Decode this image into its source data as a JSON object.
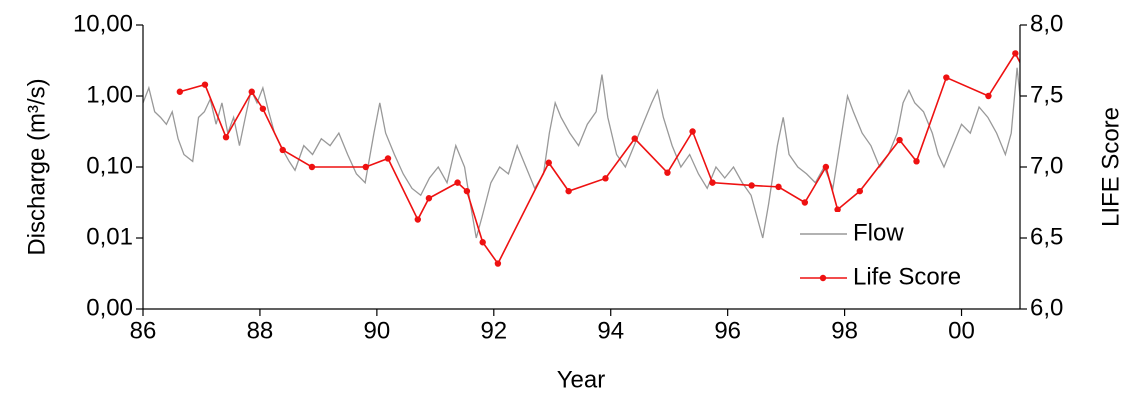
{
  "chart_data": {
    "type": "line",
    "x_label": "Year",
    "y_label": "Discharge (m³/s)",
    "y2_label": "LIFE Score",
    "yscale": "log",
    "legend_position": "lower right",
    "xlim": [
      1986,
      2001
    ],
    "xticks": [
      {
        "value": 1986,
        "label": "86"
      },
      {
        "value": 1988,
        "label": "88"
      },
      {
        "value": 1990,
        "label": "90"
      },
      {
        "value": 1992,
        "label": "92"
      },
      {
        "value": 1994,
        "label": "94"
      },
      {
        "value": 1996,
        "label": "96"
      },
      {
        "value": 1998,
        "label": "98"
      },
      {
        "value": 2000,
        "label": "00"
      }
    ],
    "ylim": [
      0.001,
      10
    ],
    "yticks": [
      {
        "value": 0.001,
        "label": "0,00"
      },
      {
        "value": 0.01,
        "label": "0,01"
      },
      {
        "value": 0.1,
        "label": "0,10"
      },
      {
        "value": 1,
        "label": "1,00"
      },
      {
        "value": 10,
        "label": "10,00"
      }
    ],
    "y2lim": [
      6,
      8
    ],
    "y2ticks": [
      {
        "value": 6,
        "label": "6,0"
      },
      {
        "value": 6.5,
        "label": "6,5"
      },
      {
        "value": 7,
        "label": "7,0"
      },
      {
        "value": 7.5,
        "label": "7,5"
      },
      {
        "value": 8,
        "label": "8,0"
      }
    ],
    "series": [
      {
        "name": "Flow",
        "color": "#999999",
        "markers": false,
        "x": [
          1986.0,
          1986.1,
          1986.2,
          1986.3,
          1986.4,
          1986.5,
          1986.6,
          1986.7,
          1986.85,
          1986.95,
          1987.05,
          1987.15,
          1987.25,
          1987.35,
          1987.45,
          1987.55,
          1987.65,
          1987.75,
          1987.85,
          1987.95,
          1988.05,
          1988.15,
          1988.25,
          1988.35,
          1988.5,
          1988.6,
          1988.75,
          1988.9,
          1989.05,
          1989.2,
          1989.35,
          1989.5,
          1989.65,
          1989.8,
          1989.95,
          1990.05,
          1990.15,
          1990.3,
          1990.45,
          1990.6,
          1990.75,
          1990.9,
          1991.05,
          1991.2,
          1991.35,
          1991.5,
          1991.6,
          1991.7,
          1991.8,
          1991.95,
          1992.1,
          1992.25,
          1992.4,
          1992.55,
          1992.7,
          1992.85,
          1992.95,
          1993.05,
          1993.15,
          1993.3,
          1993.45,
          1993.6,
          1993.75,
          1993.85,
          1993.95,
          1994.1,
          1994.25,
          1994.4,
          1994.55,
          1994.7,
          1994.8,
          1994.9,
          1995.05,
          1995.2,
          1995.35,
          1995.5,
          1995.65,
          1995.8,
          1995.95,
          1996.1,
          1996.25,
          1996.4,
          1996.5,
          1996.6,
          1996.7,
          1996.85,
          1996.95,
          1997.05,
          1997.2,
          1997.35,
          1997.5,
          1997.65,
          1997.8,
          1997.95,
          1998.05,
          1998.15,
          1998.3,
          1998.45,
          1998.6,
          1998.75,
          1998.9,
          1999.0,
          1999.1,
          1999.2,
          1999.35,
          1999.5,
          1999.6,
          1999.7,
          1999.85,
          2000.0,
          2000.15,
          2000.3,
          2000.45,
          2000.6,
          2000.75,
          2000.85,
          2000.95,
          2001.0
        ],
        "values": [
          0.8,
          1.3,
          0.6,
          0.5,
          0.4,
          0.6,
          0.25,
          0.15,
          0.12,
          0.5,
          0.6,
          0.9,
          0.4,
          0.8,
          0.3,
          0.5,
          0.2,
          0.5,
          1.2,
          0.8,
          1.3,
          0.6,
          0.3,
          0.2,
          0.12,
          0.09,
          0.2,
          0.15,
          0.25,
          0.2,
          0.3,
          0.15,
          0.08,
          0.06,
          0.3,
          0.8,
          0.3,
          0.15,
          0.08,
          0.05,
          0.04,
          0.07,
          0.1,
          0.06,
          0.2,
          0.1,
          0.03,
          0.01,
          0.02,
          0.06,
          0.1,
          0.08,
          0.2,
          0.1,
          0.05,
          0.08,
          0.3,
          0.8,
          0.5,
          0.3,
          0.2,
          0.4,
          0.6,
          2.0,
          0.5,
          0.15,
          0.1,
          0.2,
          0.4,
          0.8,
          1.2,
          0.5,
          0.2,
          0.1,
          0.15,
          0.08,
          0.05,
          0.1,
          0.07,
          0.1,
          0.06,
          0.04,
          0.02,
          0.01,
          0.03,
          0.2,
          0.5,
          0.15,
          0.1,
          0.08,
          0.06,
          0.1,
          0.05,
          0.3,
          1.0,
          0.6,
          0.3,
          0.2,
          0.1,
          0.15,
          0.3,
          0.8,
          1.2,
          0.8,
          0.6,
          0.3,
          0.15,
          0.1,
          0.2,
          0.4,
          0.3,
          0.7,
          0.5,
          0.3,
          0.15,
          0.3,
          2.5,
          1.0
        ]
      },
      {
        "name": "Life Score",
        "color": "#ee1111",
        "markers": true,
        "axis": "y2",
        "x": [
          1986.63,
          1987.06,
          1987.42,
          1987.86,
          1988.05,
          1988.39,
          1988.89,
          1989.81,
          1990.19,
          1990.7,
          1990.89,
          1991.38,
          1991.54,
          1991.81,
          1992.07,
          1992.94,
          1993.28,
          1993.91,
          1994.41,
          1994.97,
          1995.4,
          1995.74,
          1996.41,
          1996.87,
          1997.32,
          1997.68,
          1997.88,
          1998.26,
          1998.94,
          1999.23,
          1999.74,
          2000.46,
          2000.92,
          2001.16
        ],
        "values": [
          7.53,
          7.58,
          7.21,
          7.53,
          7.41,
          7.12,
          7.0,
          7.0,
          7.06,
          6.63,
          6.78,
          6.89,
          6.83,
          6.47,
          6.32,
          7.03,
          6.83,
          6.92,
          7.2,
          6.96,
          7.25,
          6.89,
          6.87,
          6.86,
          6.75,
          7.0,
          6.7,
          6.83,
          7.19,
          7.04,
          7.63,
          7.5,
          7.8,
          7.61
        ]
      }
    ]
  }
}
